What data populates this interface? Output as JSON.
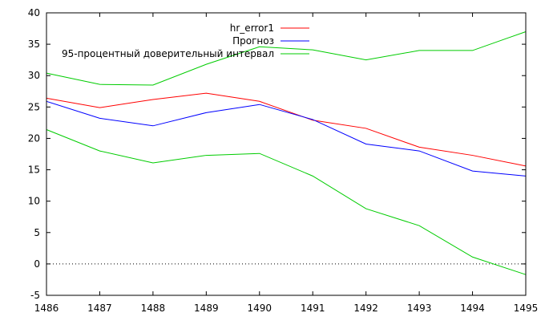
{
  "chart_data": {
    "type": "line",
    "x": [
      1486,
      1487,
      1488,
      1489,
      1490,
      1491,
      1492,
      1493,
      1494,
      1495
    ],
    "xlim": [
      1486,
      1495
    ],
    "ylim": [
      -5,
      40
    ],
    "yticks": [
      -5,
      0,
      5,
      10,
      15,
      20,
      25,
      30,
      35,
      40
    ],
    "grid": false,
    "zero_line": "dotted",
    "legend_position": "top-center",
    "series": [
      {
        "name": "hr_error1",
        "color": "#ff0000",
        "values": [
          26.4,
          24.9,
          26.2,
          27.2,
          25.9,
          22.9,
          21.6,
          18.6,
          17.3,
          15.6
        ]
      },
      {
        "name": "Прогноз",
        "color": "#0000ff",
        "values": [
          25.9,
          23.2,
          22.0,
          24.1,
          25.4,
          23.0,
          19.1,
          18.0,
          14.8,
          14.0
        ]
      },
      {
        "name": "95-процентный доверительный интервал",
        "color": "#00cc00",
        "values": [
          30.4,
          28.6,
          28.5,
          31.8,
          34.6,
          34.1,
          32.5,
          34.0,
          34.0,
          37.0
        ]
      },
      {
        "name": "",
        "color": "#00cc00",
        "values": [
          21.4,
          18.0,
          16.1,
          17.3,
          17.6,
          14.0,
          8.8,
          6.1,
          1.1,
          -1.7
        ]
      }
    ]
  }
}
